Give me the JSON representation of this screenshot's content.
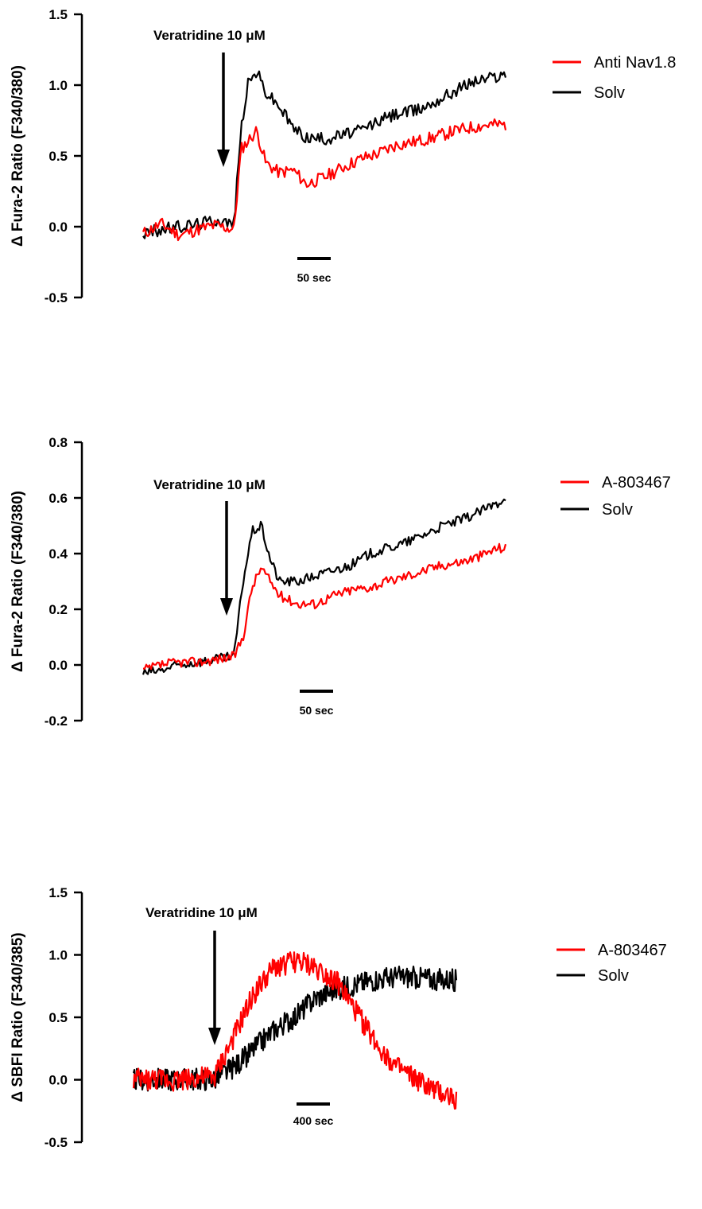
{
  "chart_data": [
    {
      "type": "line",
      "ylabel": "Δ Fura-2 Ratio (F340/380)",
      "ylim": [
        -0.5,
        1.5
      ],
      "yticks": [
        "1.5",
        "1.0",
        "0.5",
        "0.0",
        "-0.5"
      ],
      "yticks_values": [
        1.5,
        1.0,
        0.5,
        0.0,
        -0.5
      ],
      "annotation": "Veratridine 10 μM",
      "stimulus_time": 100,
      "xlim": [
        0,
        400
      ],
      "scale_bar": {
        "label": "50 sec",
        "length": 50
      },
      "legend": {
        "position": "top-right"
      },
      "series": [
        {
          "name": "Anti Nav1.8",
          "color": "#ff0000",
          "x": [
            0,
            20,
            40,
            60,
            80,
            100,
            108,
            115,
            125,
            135,
            150,
            165,
            180,
            200,
            220,
            240,
            260,
            280,
            300,
            320,
            340,
            360,
            380,
            400
          ],
          "y": [
            -0.05,
            0.02,
            -0.06,
            -0.02,
            0.01,
            -0.02,
            0.55,
            0.6,
            0.68,
            0.45,
            0.38,
            0.4,
            0.3,
            0.35,
            0.42,
            0.48,
            0.52,
            0.58,
            0.6,
            0.63,
            0.67,
            0.7,
            0.72,
            0.72
          ]
        },
        {
          "name": "Solv",
          "color": "#000000",
          "x": [
            0,
            20,
            40,
            60,
            80,
            100,
            108,
            115,
            125,
            135,
            150,
            165,
            180,
            200,
            220,
            240,
            260,
            280,
            300,
            320,
            340,
            360,
            380,
            400
          ],
          "y": [
            -0.05,
            -0.02,
            0.0,
            0.02,
            0.05,
            0.02,
            0.7,
            1.0,
            1.1,
            0.95,
            0.85,
            0.7,
            0.63,
            0.62,
            0.65,
            0.68,
            0.75,
            0.8,
            0.82,
            0.88,
            0.95,
            1.02,
            1.05,
            1.08
          ]
        }
      ]
    },
    {
      "type": "line",
      "ylabel": "Δ Fura-2 Ratio (F340/380)",
      "ylim": [
        -0.2,
        0.8
      ],
      "yticks": [
        "0.8",
        "0.6",
        "0.4",
        "0.2",
        "0.0",
        "-0.2"
      ],
      "yticks_values": [
        0.8,
        0.6,
        0.4,
        0.2,
        0.0,
        -0.2
      ],
      "annotation": "Veratridine 10 μM",
      "stimulus_time": 100,
      "xlim": [
        0,
        400
      ],
      "scale_bar": {
        "label": "50 sec",
        "length": 50
      },
      "legend": {
        "position": "top-right"
      },
      "series": [
        {
          "name": "A-803467",
          "color": "#ff0000",
          "x": [
            0,
            20,
            40,
            60,
            80,
            100,
            110,
            120,
            130,
            140,
            150,
            170,
            190,
            210,
            230,
            250,
            270,
            290,
            310,
            330,
            350,
            370,
            390,
            400
          ],
          "y": [
            -0.02,
            0.0,
            0.01,
            0.01,
            0.02,
            0.03,
            0.1,
            0.28,
            0.35,
            0.3,
            0.25,
            0.22,
            0.22,
            0.25,
            0.27,
            0.28,
            0.3,
            0.32,
            0.34,
            0.36,
            0.37,
            0.39,
            0.42,
            0.42
          ]
        },
        {
          "name": "Solv",
          "color": "#000000",
          "x": [
            0,
            20,
            40,
            60,
            80,
            100,
            110,
            120,
            130,
            140,
            150,
            170,
            190,
            210,
            230,
            250,
            270,
            290,
            310,
            330,
            350,
            370,
            390,
            400
          ],
          "y": [
            -0.03,
            -0.02,
            0.0,
            0.01,
            0.02,
            0.03,
            0.3,
            0.48,
            0.5,
            0.38,
            0.3,
            0.3,
            0.32,
            0.34,
            0.36,
            0.4,
            0.42,
            0.44,
            0.47,
            0.5,
            0.52,
            0.55,
            0.58,
            0.61
          ]
        }
      ]
    },
    {
      "type": "line",
      "ylabel": "Δ SBFI Ratio (F340/385)",
      "ylim": [
        -0.5,
        1.5
      ],
      "yticks": [
        "1.5",
        "1.0",
        "0.5",
        "0.0",
        "-0.5"
      ],
      "yticks_values": [
        1.5,
        1.0,
        0.5,
        0.0,
        -0.5
      ],
      "annotation": "Veratridine 10 μM",
      "stimulus_time": 800,
      "xlim": [
        0,
        3200
      ],
      "scale_bar": {
        "label": "400 sec",
        "length": 400
      },
      "legend": {
        "position": "top-right"
      },
      "series": [
        {
          "name": "A-803467",
          "color": "#ff0000",
          "x": [
            0,
            400,
            800,
            1000,
            1200,
            1400,
            1600,
            1800,
            2000,
            2200,
            2400,
            2600,
            2800,
            3000,
            3200
          ],
          "y": [
            0.0,
            0.0,
            0.02,
            0.35,
            0.7,
            0.9,
            0.95,
            0.9,
            0.8,
            0.55,
            0.3,
            0.1,
            0.0,
            -0.1,
            -0.15
          ]
        },
        {
          "name": "Solv",
          "color": "#000000",
          "x": [
            0,
            400,
            800,
            1000,
            1200,
            1400,
            1600,
            1800,
            2000,
            2200,
            2400,
            2600,
            2800,
            3000,
            3200
          ],
          "y": [
            0.0,
            0.0,
            0.0,
            0.1,
            0.25,
            0.4,
            0.5,
            0.65,
            0.72,
            0.76,
            0.8,
            0.82,
            0.82,
            0.8,
            0.8
          ]
        }
      ]
    }
  ]
}
